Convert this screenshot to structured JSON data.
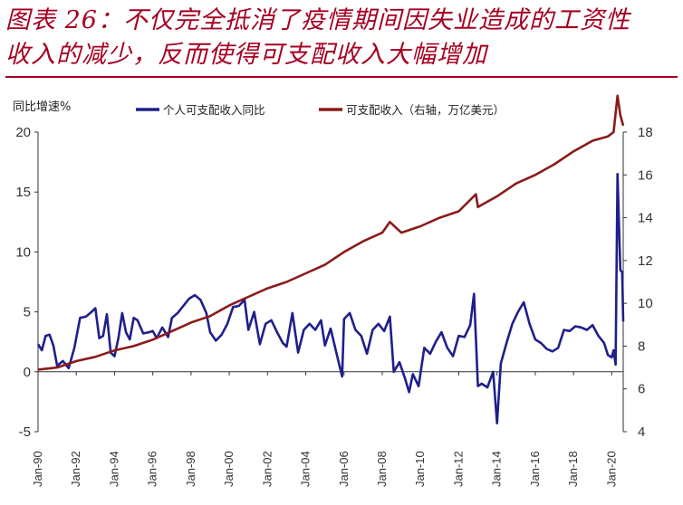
{
  "header": {
    "title_line1": "图表 26：不仅完全抵消了疫情期间因失业造成的工资性",
    "title_line2": "收入的减少，反而使得可支配收入大幅增加"
  },
  "chart_data": {
    "type": "line",
    "title": "",
    "ylabel_left": "同比增速%",
    "ylabel_right": "",
    "ylim_left": [
      -5,
      20
    ],
    "ylim_right": [
      4,
      18
    ],
    "yticks_left": [
      "20",
      "15",
      "10",
      "5",
      "0",
      "-5"
    ],
    "yticks_right": [
      "18",
      "16",
      "14",
      "12",
      "10",
      "8",
      "6",
      "4"
    ],
    "xticks": [
      "Jan-90",
      "Jan-92",
      "Jan-94",
      "Jan-96",
      "Jan-98",
      "Jan-00",
      "Jan-02",
      "Jan-04",
      "Jan-06",
      "Jan-08",
      "Jan-10",
      "Jan-12",
      "Jan-14",
      "Jan-16",
      "Jan-18",
      "Jan-20"
    ],
    "x_range": [
      1990.0,
      2020.6
    ],
    "legend_position": "top",
    "grid": false,
    "series": [
      {
        "name": "个人可支配收入同比",
        "axis": "left",
        "color": "#1f1f8c",
        "points": [
          [
            1990.0,
            2.3
          ],
          [
            1990.2,
            1.8
          ],
          [
            1990.4,
            3.0
          ],
          [
            1990.6,
            3.1
          ],
          [
            1990.8,
            2.2
          ],
          [
            1991.0,
            0.5
          ],
          [
            1991.3,
            0.9
          ],
          [
            1991.6,
            0.3
          ],
          [
            1991.9,
            2.0
          ],
          [
            1992.2,
            4.5
          ],
          [
            1992.5,
            4.6
          ],
          [
            1992.8,
            5.0
          ],
          [
            1993.0,
            5.3
          ],
          [
            1993.2,
            2.8
          ],
          [
            1993.4,
            3.0
          ],
          [
            1993.6,
            4.8
          ],
          [
            1993.8,
            1.6
          ],
          [
            1994.0,
            1.3
          ],
          [
            1994.2,
            2.8
          ],
          [
            1994.4,
            4.9
          ],
          [
            1994.6,
            3.3
          ],
          [
            1994.8,
            2.7
          ],
          [
            1995.0,
            4.5
          ],
          [
            1995.2,
            4.3
          ],
          [
            1995.5,
            3.2
          ],
          [
            1995.8,
            3.3
          ],
          [
            1996.0,
            3.4
          ],
          [
            1996.2,
            2.8
          ],
          [
            1996.5,
            3.7
          ],
          [
            1996.8,
            2.9
          ],
          [
            1997.0,
            4.5
          ],
          [
            1997.3,
            4.9
          ],
          [
            1997.6,
            5.5
          ],
          [
            1997.9,
            6.1
          ],
          [
            1998.2,
            6.4
          ],
          [
            1998.5,
            6.0
          ],
          [
            1998.8,
            4.9
          ],
          [
            1999.0,
            3.3
          ],
          [
            1999.3,
            2.6
          ],
          [
            1999.6,
            3.1
          ],
          [
            1999.9,
            4.0
          ],
          [
            2000.2,
            5.4
          ],
          [
            2000.5,
            5.5
          ],
          [
            2000.8,
            6.0
          ],
          [
            2001.0,
            3.5
          ],
          [
            2001.3,
            5.0
          ],
          [
            2001.6,
            2.3
          ],
          [
            2001.9,
            4.0
          ],
          [
            2002.2,
            4.3
          ],
          [
            2002.5,
            3.3
          ],
          [
            2002.8,
            2.4
          ],
          [
            2003.0,
            2.1
          ],
          [
            2003.3,
            4.9
          ],
          [
            2003.6,
            1.6
          ],
          [
            2003.9,
            3.5
          ],
          [
            2004.2,
            4.0
          ],
          [
            2004.5,
            3.5
          ],
          [
            2004.8,
            4.3
          ],
          [
            2005.0,
            2.2
          ],
          [
            2005.3,
            3.6
          ],
          [
            2005.6,
            1.6
          ],
          [
            2005.9,
            -0.4
          ],
          [
            2006.0,
            4.4
          ],
          [
            2006.3,
            4.9
          ],
          [
            2006.6,
            3.5
          ],
          [
            2006.9,
            3.0
          ],
          [
            2007.2,
            1.5
          ],
          [
            2007.5,
            3.5
          ],
          [
            2007.8,
            4.0
          ],
          [
            2008.1,
            3.4
          ],
          [
            2008.4,
            4.6
          ],
          [
            2008.6,
            0.0
          ],
          [
            2008.9,
            0.8
          ],
          [
            2009.2,
            -0.6
          ],
          [
            2009.4,
            -1.7
          ],
          [
            2009.6,
            -0.2
          ],
          [
            2009.9,
            -1.2
          ],
          [
            2010.2,
            2.0
          ],
          [
            2010.5,
            1.5
          ],
          [
            2010.8,
            2.5
          ],
          [
            2011.1,
            3.3
          ],
          [
            2011.4,
            2.0
          ],
          [
            2011.7,
            1.3
          ],
          [
            2012.0,
            3.0
          ],
          [
            2012.3,
            2.9
          ],
          [
            2012.6,
            3.9
          ],
          [
            2012.8,
            6.5
          ],
          [
            2013.0,
            -1.2
          ],
          [
            2013.2,
            -1.0
          ],
          [
            2013.5,
            -1.3
          ],
          [
            2013.8,
            0.0
          ],
          [
            2014.0,
            -4.3
          ],
          [
            2014.2,
            0.7
          ],
          [
            2014.5,
            2.4
          ],
          [
            2014.8,
            4.0
          ],
          [
            2015.1,
            5.0
          ],
          [
            2015.4,
            5.8
          ],
          [
            2015.7,
            4.0
          ],
          [
            2016.0,
            2.7
          ],
          [
            2016.3,
            2.4
          ],
          [
            2016.6,
            1.9
          ],
          [
            2016.9,
            1.7
          ],
          [
            2017.2,
            2.0
          ],
          [
            2017.5,
            3.5
          ],
          [
            2017.8,
            3.4
          ],
          [
            2018.1,
            3.8
          ],
          [
            2018.4,
            3.7
          ],
          [
            2018.7,
            3.5
          ],
          [
            2019.0,
            3.9
          ],
          [
            2019.3,
            3.0
          ],
          [
            2019.6,
            2.4
          ],
          [
            2019.8,
            1.4
          ],
          [
            2020.0,
            1.2
          ],
          [
            2020.1,
            1.8
          ],
          [
            2020.2,
            0.6
          ],
          [
            2020.3,
            16.5
          ],
          [
            2020.45,
            8.5
          ],
          [
            2020.55,
            8.3
          ],
          [
            2020.6,
            4.2
          ]
        ]
      },
      {
        "name": "可支配收入（右轴，万亿美元）",
        "axis": "right",
        "color": "#8b1a1a",
        "points": [
          [
            1990.0,
            6.9
          ],
          [
            1991.0,
            7.0
          ],
          [
            1992.0,
            7.3
          ],
          [
            1993.0,
            7.5
          ],
          [
            1994.0,
            7.8
          ],
          [
            1995.0,
            8.0
          ],
          [
            1996.0,
            8.3
          ],
          [
            1997.0,
            8.7
          ],
          [
            1998.0,
            9.1
          ],
          [
            1999.0,
            9.4
          ],
          [
            2000.0,
            9.9
          ],
          [
            2001.0,
            10.3
          ],
          [
            2002.0,
            10.7
          ],
          [
            2003.0,
            11.0
          ],
          [
            2004.0,
            11.4
          ],
          [
            2005.0,
            11.8
          ],
          [
            2006.0,
            12.4
          ],
          [
            2007.0,
            12.9
          ],
          [
            2008.0,
            13.3
          ],
          [
            2008.4,
            13.8
          ],
          [
            2009.0,
            13.3
          ],
          [
            2010.0,
            13.6
          ],
          [
            2011.0,
            14.0
          ],
          [
            2012.0,
            14.3
          ],
          [
            2012.9,
            15.1
          ],
          [
            2013.0,
            14.5
          ],
          [
            2014.0,
            15.0
          ],
          [
            2015.0,
            15.6
          ],
          [
            2016.0,
            16.0
          ],
          [
            2017.0,
            16.5
          ],
          [
            2018.0,
            17.1
          ],
          [
            2019.0,
            17.6
          ],
          [
            2019.8,
            17.8
          ],
          [
            2020.1,
            18.0
          ],
          [
            2020.3,
            19.7
          ],
          [
            2020.45,
            18.8
          ],
          [
            2020.6,
            18.3
          ]
        ]
      }
    ]
  }
}
